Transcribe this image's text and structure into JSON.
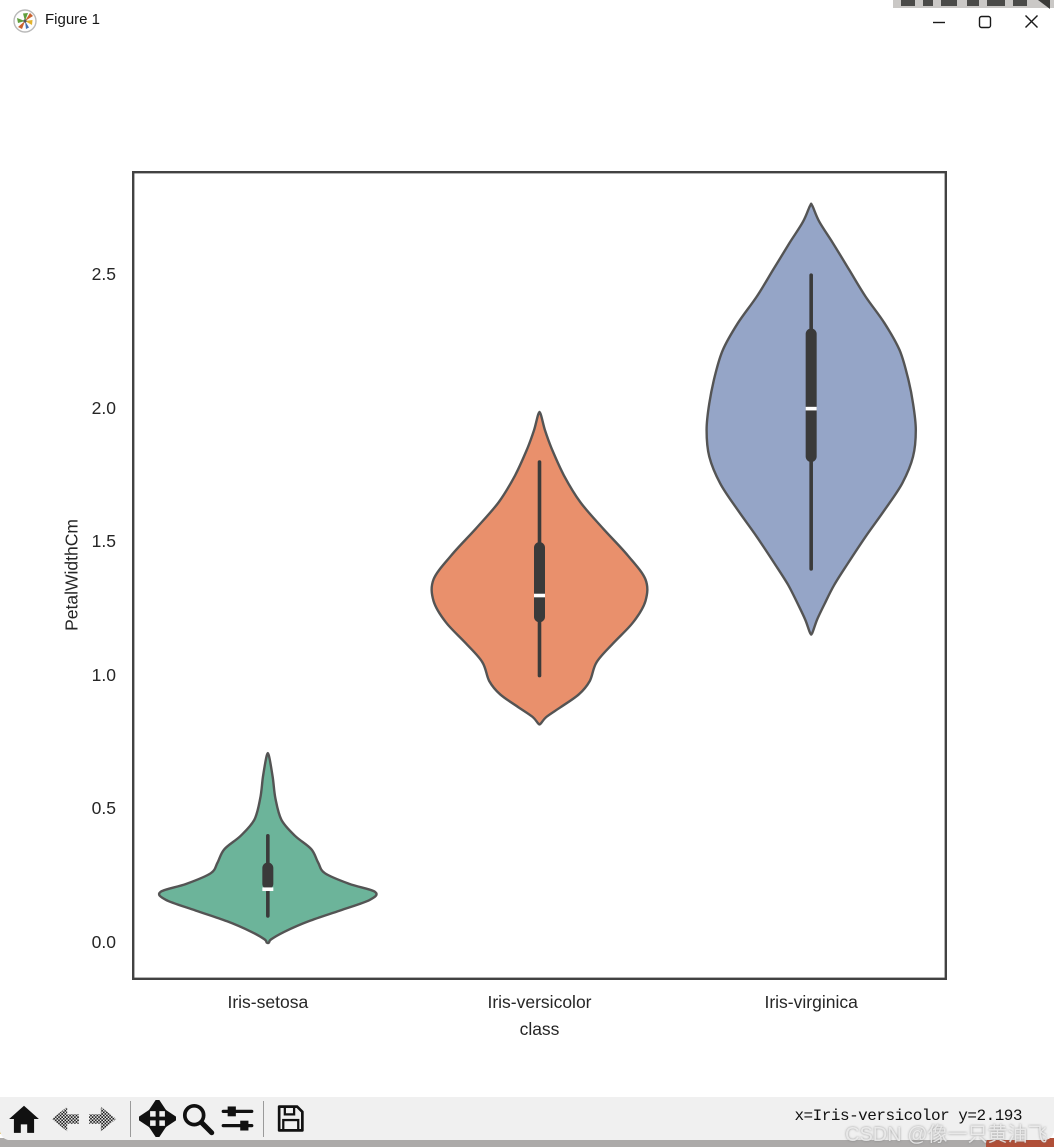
{
  "window": {
    "title": "Figure 1",
    "controls": [
      {
        "name": "minimize"
      },
      {
        "name": "maximize"
      },
      {
        "name": "close"
      }
    ]
  },
  "chart_data": {
    "type": "violin",
    "title": "",
    "xlabel": "class",
    "ylabel": "PetalWidthCm",
    "categories": [
      "Iris-setosa",
      "Iris-versicolor",
      "Iris-virginica"
    ],
    "y_ticks": [
      "0.0",
      "0.5",
      "1.0",
      "1.5",
      "2.0",
      "2.5"
    ],
    "ylim": [
      -0.14,
      2.89
    ],
    "grid": false,
    "legend": false,
    "edge_color": "#545454",
    "inner_color": "#3a3a3a",
    "series": [
      {
        "name": "Iris-setosa",
        "color": "#6cb49a",
        "median": 0.2,
        "q1": 0.2,
        "q3": 0.3,
        "whisker_low": 0.1,
        "whisker_high": 0.4,
        "kde_range": [
          0.0,
          0.7
        ],
        "profile": [
          [
            0.7,
            0.004
          ],
          [
            0.62,
            0.018
          ],
          [
            0.54,
            0.028
          ],
          [
            0.46,
            0.05
          ],
          [
            0.4,
            0.1
          ],
          [
            0.35,
            0.16
          ],
          [
            0.3,
            0.185
          ],
          [
            0.26,
            0.21
          ],
          [
            0.22,
            0.3
          ],
          [
            0.19,
            0.395
          ],
          [
            0.16,
            0.375
          ],
          [
            0.12,
            0.265
          ],
          [
            0.08,
            0.15
          ],
          [
            0.04,
            0.06
          ],
          [
            0.012,
            0.012
          ],
          [
            0.0,
            0.004
          ]
        ]
      },
      {
        "name": "Iris-versicolor",
        "color": "#e9906c",
        "median": 1.3,
        "q1": 1.2,
        "q3": 1.5,
        "whisker_low": 1.0,
        "whisker_high": 1.8,
        "kde_range": [
          0.82,
          1.98
        ],
        "profile": [
          [
            1.98,
            0.004
          ],
          [
            1.92,
            0.02
          ],
          [
            1.85,
            0.045
          ],
          [
            1.75,
            0.09
          ],
          [
            1.65,
            0.15
          ],
          [
            1.55,
            0.235
          ],
          [
            1.45,
            0.325
          ],
          [
            1.36,
            0.39
          ],
          [
            1.28,
            0.39
          ],
          [
            1.2,
            0.345
          ],
          [
            1.12,
            0.27
          ],
          [
            1.05,
            0.21
          ],
          [
            0.98,
            0.185
          ],
          [
            0.93,
            0.145
          ],
          [
            0.88,
            0.075
          ],
          [
            0.845,
            0.025
          ],
          [
            0.82,
            0.004
          ]
        ]
      },
      {
        "name": "Iris-virginica",
        "color": "#95a5c7",
        "median": 2.0,
        "q1": 1.8,
        "q3": 2.3,
        "whisker_low": 1.4,
        "whisker_high": 2.5,
        "kde_range": [
          1.16,
          2.76
        ],
        "profile": [
          [
            2.76,
            0.004
          ],
          [
            2.7,
            0.03
          ],
          [
            2.62,
            0.08
          ],
          [
            2.52,
            0.14
          ],
          [
            2.42,
            0.2
          ],
          [
            2.32,
            0.27
          ],
          [
            2.22,
            0.325
          ],
          [
            2.12,
            0.355
          ],
          [
            2.02,
            0.375
          ],
          [
            1.92,
            0.385
          ],
          [
            1.82,
            0.375
          ],
          [
            1.72,
            0.335
          ],
          [
            1.62,
            0.27
          ],
          [
            1.52,
            0.2
          ],
          [
            1.42,
            0.135
          ],
          [
            1.34,
            0.085
          ],
          [
            1.27,
            0.05
          ],
          [
            1.21,
            0.022
          ],
          [
            1.16,
            0.004
          ]
        ]
      }
    ]
  },
  "toolbar": {
    "buttons": [
      {
        "name": "home",
        "enabled": true
      },
      {
        "name": "back",
        "enabled": false
      },
      {
        "name": "forward",
        "enabled": false
      },
      {
        "name": "pan",
        "enabled": true
      },
      {
        "name": "zoom-to-rect",
        "enabled": true
      },
      {
        "name": "configure-subplots",
        "enabled": true
      },
      {
        "name": "save",
        "enabled": true
      }
    ],
    "status_text": "x=Iris-versicolor y=2.193"
  },
  "watermark": {
    "text": "CSDN @像一只黄油飞"
  }
}
